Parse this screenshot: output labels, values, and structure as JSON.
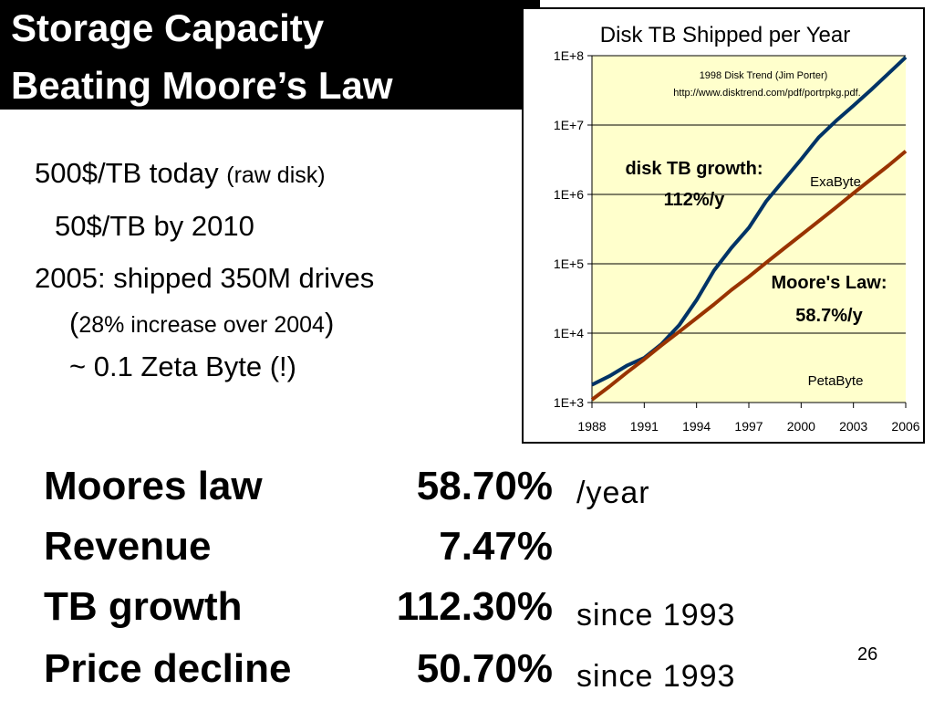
{
  "title": {
    "line1": "Storage Capacity",
    "line2": "Beating Moore’s Law"
  },
  "bullets": {
    "b1_main": "500$/TB today ",
    "b1_note": "(raw disk)",
    "b2": "50$/TB by 2010",
    "b3": "2005: shipped 350M drives",
    "b4_open": "(",
    "b4_note": "28% increase over 2004",
    "b4_close": ")",
    "b5": "~ 0.1 Zeta Byte (!)"
  },
  "stats": [
    {
      "label": "Moores law",
      "value": "58.70%",
      "unit": "/year"
    },
    {
      "label": "Revenue",
      "value": "7.47%",
      "unit": ""
    },
    {
      "label": "TB growth",
      "value": "112.30%",
      "unit": "since 1993"
    },
    {
      "label": "Price decline",
      "value": "50.70%",
      "unit": "since 1993"
    }
  ],
  "page_number": "26",
  "chart_data": {
    "type": "line",
    "title": "Disk TB Shipped per Year",
    "source_line1": "1998 Disk Trend (Jim Porter)",
    "source_line2": "http://www.disktrend.com/pdf/portrpkg.pdf.",
    "x_ticks": [
      "1988",
      "1991",
      "1994",
      "1997",
      "2000",
      "2003",
      "2006"
    ],
    "y_ticks": [
      "1E+3",
      "1E+4",
      "1E+5",
      "1E+6",
      "1E+7",
      "1E+8"
    ],
    "y_scale": "log",
    "xlim": [
      1988,
      2006
    ],
    "ylim": [
      1000,
      100000000
    ],
    "grid": "horizontal",
    "background": "#FFFFCC",
    "series": [
      {
        "name": "disk TB growth",
        "color": "#003366",
        "x": [
          1988,
          1989,
          1990,
          1991,
          1992,
          1993,
          1994,
          1995,
          1996,
          1997,
          1998,
          1999,
          2000,
          2001,
          2002,
          2003,
          2004,
          2005,
          2006
        ],
        "y": [
          1800,
          2400,
          3400,
          4400,
          7000,
          13000,
          30000,
          80000,
          170000,
          330000,
          800000,
          1600000,
          3200000,
          6600000,
          11500000,
          19000000,
          32000000,
          55000000,
          95000000
        ]
      },
      {
        "name": "Moore's Law",
        "color": "#993300",
        "x": [
          1988,
          1989,
          1990,
          1991,
          1992,
          1993,
          1994,
          1995,
          1996,
          1997,
          1998,
          1999,
          2000,
          2001,
          2002,
          2003,
          2004,
          2005,
          2006
        ],
        "y": [
          1100,
          1700,
          2700,
          4200,
          6700,
          10500,
          16500,
          26000,
          42000,
          65000,
          104000,
          165000,
          260000,
          410000,
          650000,
          1040000,
          1650000,
          2600000,
          4200000
        ]
      }
    ],
    "annotations": [
      {
        "text": "disk TB growth:"
      },
      {
        "text": "112%/y"
      },
      {
        "text": "Moore's Law:"
      },
      {
        "text": "58.7%/y"
      },
      {
        "text": "ExaByte"
      },
      {
        "text": "PetaByte"
      }
    ]
  }
}
